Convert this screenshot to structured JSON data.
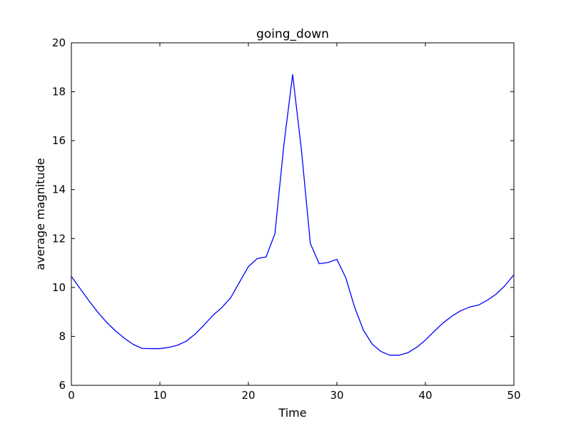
{
  "chart_data": {
    "type": "line",
    "title": "going_down",
    "xlabel": "Time",
    "ylabel": "average magnitude",
    "xlim": [
      0,
      50
    ],
    "ylim": [
      6,
      20
    ],
    "xticks": [
      0,
      10,
      20,
      30,
      40,
      50
    ],
    "yticks": [
      6,
      8,
      10,
      12,
      14,
      16,
      18,
      20
    ],
    "grid": false,
    "legend": "none",
    "series": [
      {
        "color": "#0000ff",
        "x": [
          0,
          1,
          2,
          3,
          4,
          5,
          6,
          7,
          8,
          9,
          10,
          11,
          12,
          13,
          14,
          15,
          16,
          17,
          18,
          19,
          20,
          21,
          22,
          23,
          24,
          25,
          26,
          27,
          28,
          29,
          30,
          31,
          32,
          33,
          34,
          35,
          36,
          37,
          38,
          39,
          40,
          41,
          42,
          43,
          44,
          45,
          46,
          47,
          48,
          49,
          50
        ],
        "y": [
          10.45,
          9.95,
          9.45,
          8.98,
          8.57,
          8.22,
          7.92,
          7.67,
          7.51,
          7.5,
          7.5,
          7.55,
          7.64,
          7.81,
          8.1,
          8.47,
          8.86,
          9.18,
          9.58,
          10.22,
          10.85,
          11.18,
          11.25,
          12.2,
          15.8,
          18.7,
          15.6,
          11.8,
          10.97,
          11.02,
          11.15,
          10.4,
          9.2,
          8.25,
          7.68,
          7.38,
          7.23,
          7.23,
          7.33,
          7.55,
          7.85,
          8.21,
          8.55,
          8.83,
          9.05,
          9.2,
          9.28,
          9.48,
          9.73,
          10.08,
          10.52
        ]
      }
    ]
  }
}
